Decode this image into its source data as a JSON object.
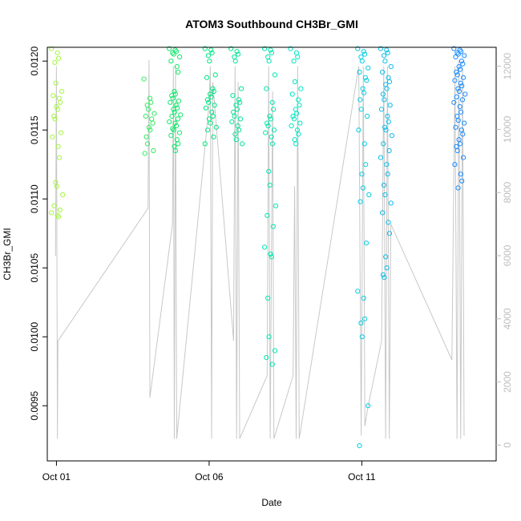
{
  "chart_data": {
    "type": "scatter",
    "title": "ATOM3 Southbound CH3Br_GMI",
    "xlabel": "Date",
    "ylabel": "CH3Br_GMI",
    "x_tick_labels": [
      "Oct 01",
      "Oct 06",
      "Oct 11"
    ],
    "x_tick_days": [
      1,
      6,
      11
    ],
    "xlim_days": [
      0.7,
      15.4
    ],
    "ylim": [
      0.0091,
      0.0121
    ],
    "y_ticks": [
      0.0095,
      0.01,
      0.0105,
      0.011,
      0.0115,
      0.012
    ],
    "y_tick_labels": [
      "0.0095",
      "0.0100",
      "0.0105",
      "0.0110",
      "0.0115",
      "0.0120"
    ],
    "y2_ticks": [
      0,
      2000,
      4000,
      6000,
      8000,
      10000,
      12000
    ],
    "y2_tick_labels": [
      "0",
      "2000",
      "4000",
      "6000",
      "8000",
      "10000",
      "12000"
    ],
    "y2lim": [
      -500,
      12600
    ],
    "secondary_axis_color": "#bebebe",
    "altitude_line_color": "#c8c8c8",
    "grid": false,
    "legend": "none",
    "marker": "open-circle",
    "color_gradient": [
      "#a6f542",
      "#00e673",
      "#00e6d8",
      "#1a8cff"
    ],
    "flights": [
      {
        "day": 1.02,
        "values": [
          0.01209,
          0.01206,
          0.01202,
          0.01199,
          0.01184,
          0.01178,
          0.01175,
          0.01173,
          0.0117,
          0.01167,
          0.01165,
          0.0116,
          0.01158,
          0.01148,
          0.01145,
          0.01138,
          0.0113,
          0.01112,
          0.01109,
          0.01103,
          0.01095,
          0.01092,
          0.0109,
          0.01088,
          0.01087
        ],
        "alt_profile": [
          [
            0.97,
            6000
          ],
          [
            1.0,
            12000
          ],
          [
            1.03,
            200
          ],
          [
            1.05,
            3300
          ]
        ]
      },
      {
        "day": 4.05,
        "values": [
          0.01187,
          0.01173,
          0.0117,
          0.01168,
          0.01165,
          0.01162,
          0.0116,
          0.01158,
          0.01155,
          0.01152,
          0.0115,
          0.01145,
          0.0114,
          0.01135,
          0.01133
        ],
        "alt_profile": [
          [
            4.0,
            7500
          ],
          [
            4.03,
            12200
          ],
          [
            4.06,
            1500
          ]
        ]
      },
      {
        "day": 4.88,
        "values": [
          0.01209,
          0.01208,
          0.01207,
          0.01206,
          0.01205,
          0.01203,
          0.012,
          0.01196,
          0.01192,
          0.01178,
          0.01176,
          0.01175,
          0.01173,
          0.01171,
          0.0117,
          0.01168,
          0.01166,
          0.01165,
          0.01163,
          0.01161,
          0.0116,
          0.01158,
          0.01156,
          0.01155,
          0.01153,
          0.01151,
          0.0115,
          0.01148,
          0.01146,
          0.01143,
          0.0114,
          0.01138,
          0.01135
        ],
        "alt_profile": [
          [
            4.8,
            7000
          ],
          [
            4.83,
            12000
          ],
          [
            4.86,
            200
          ],
          [
            4.9,
            12000
          ],
          [
            4.94,
            200
          ]
        ]
      },
      {
        "day": 6.05,
        "values": [
          0.01209,
          0.01208,
          0.01206,
          0.01204,
          0.012,
          0.0119,
          0.01188,
          0.0118,
          0.01178,
          0.01176,
          0.01174,
          0.01172,
          0.0117,
          0.01168,
          0.01166,
          0.01163,
          0.0116,
          0.01158,
          0.01155,
          0.01152,
          0.0115,
          0.01145,
          0.0114
        ],
        "alt_profile": [
          [
            6.0,
            10800
          ],
          [
            6.04,
            12000
          ],
          [
            6.08,
            200
          ],
          [
            6.12,
            11500
          ]
        ]
      },
      {
        "day": 6.9,
        "values": [
          0.01209,
          0.01207,
          0.01205,
          0.01203,
          0.012,
          0.0118,
          0.01175,
          0.01172,
          0.0117,
          0.01168,
          0.01165,
          0.01163,
          0.0116,
          0.01158,
          0.01156,
          0.01153,
          0.0115,
          0.01147,
          0.01143,
          0.0114
        ],
        "alt_profile": [
          [
            6.8,
            3300
          ],
          [
            6.85,
            12000
          ],
          [
            6.9,
            200
          ],
          [
            6.95,
            11500
          ],
          [
            7.0,
            200
          ]
        ]
      },
      {
        "day": 8.0,
        "values": [
          0.01209,
          0.01208,
          0.01206,
          0.01203,
          0.012,
          0.0119,
          0.0118,
          0.0117,
          0.01165,
          0.0116,
          0.01158,
          0.01155,
          0.01153,
          0.0115,
          0.01148,
          0.01145,
          0.0114,
          0.0112,
          0.0111,
          0.01095,
          0.01088,
          0.0108,
          0.01065,
          0.0106,
          0.01058,
          0.01028,
          0.01,
          0.0099,
          0.00985,
          0.0098
        ],
        "alt_profile": [
          [
            7.9,
            2200
          ],
          [
            7.95,
            12000
          ],
          [
            8.0,
            200
          ],
          [
            8.08,
            11200
          ],
          [
            8.12,
            200
          ]
        ]
      },
      {
        "day": 8.85,
        "values": [
          0.01209,
          0.01206,
          0.01203,
          0.012,
          0.01185,
          0.0118,
          0.01176,
          0.01172,
          0.01168,
          0.01165,
          0.01162,
          0.0116,
          0.01158,
          0.01155,
          0.01153,
          0.0115,
          0.01147,
          0.01143,
          0.0114
        ],
        "alt_profile": [
          [
            8.75,
            2200
          ],
          [
            8.8,
            8200
          ],
          [
            8.85,
            200
          ],
          [
            8.9,
            12000
          ],
          [
            8.95,
            200
          ]
        ]
      },
      {
        "day": 11.05,
        "values": [
          0.01209,
          0.01207,
          0.01205,
          0.01203,
          0.012,
          0.01195,
          0.01192,
          0.01188,
          0.01186,
          0.0118,
          0.01177,
          0.01172,
          0.01165,
          0.0116,
          0.0115,
          0.0114,
          0.01125,
          0.01118,
          0.01108,
          0.01103,
          0.01098,
          0.01068,
          0.01033,
          0.01028,
          0.01013,
          0.0101,
          0.01,
          0.0095,
          0.00921
        ],
        "alt_profile": [
          [
            10.9,
            12000
          ],
          [
            10.98,
            300
          ],
          [
            11.05,
            12000
          ],
          [
            11.1,
            600
          ],
          [
            11.2,
            1200
          ]
        ]
      },
      {
        "day": 11.8,
        "values": [
          0.01209,
          0.01208,
          0.01206,
          0.01204,
          0.012,
          0.01196,
          0.01192,
          0.01188,
          0.01185,
          0.01183,
          0.0118,
          0.01176,
          0.01172,
          0.01168,
          0.01165,
          0.0116,
          0.01156,
          0.01152,
          0.0115,
          0.01146,
          0.0114,
          0.01135,
          0.0113,
          0.01125,
          0.01118,
          0.0111,
          0.01103,
          0.01097,
          0.0109,
          0.01083,
          0.01075,
          0.01058,
          0.0105,
          0.01045,
          0.01043
        ],
        "alt_profile": [
          [
            11.65,
            3300
          ],
          [
            11.72,
            12000
          ],
          [
            11.78,
            200
          ],
          [
            11.84,
            12000
          ],
          [
            11.9,
            200
          ],
          [
            11.95,
            7000
          ]
        ]
      },
      {
        "day": 14.2,
        "values": [
          0.01209,
          0.01208,
          0.01207,
          0.01206,
          0.01205,
          0.01204,
          0.01203,
          0.012,
          0.01198,
          0.01196,
          0.01194,
          0.01192,
          0.0119,
          0.01188,
          0.01186,
          0.01184,
          0.01182,
          0.0118,
          0.01178,
          0.01176,
          0.01174,
          0.01172,
          0.0117,
          0.01167,
          0.01163,
          0.0116,
          0.01157,
          0.01155,
          0.01152,
          0.0115,
          0.01147,
          0.01143,
          0.0114,
          0.01138,
          0.01135,
          0.0113,
          0.01125,
          0.01118,
          0.01113,
          0.01108
        ],
        "alt_profile": [
          [
            13.95,
            2700
          ],
          [
            14.05,
            12000
          ],
          [
            14.12,
            200
          ],
          [
            14.18,
            12200
          ],
          [
            14.24,
            200
          ],
          [
            14.3,
            12000
          ],
          [
            14.35,
            300
          ]
        ]
      }
    ]
  }
}
